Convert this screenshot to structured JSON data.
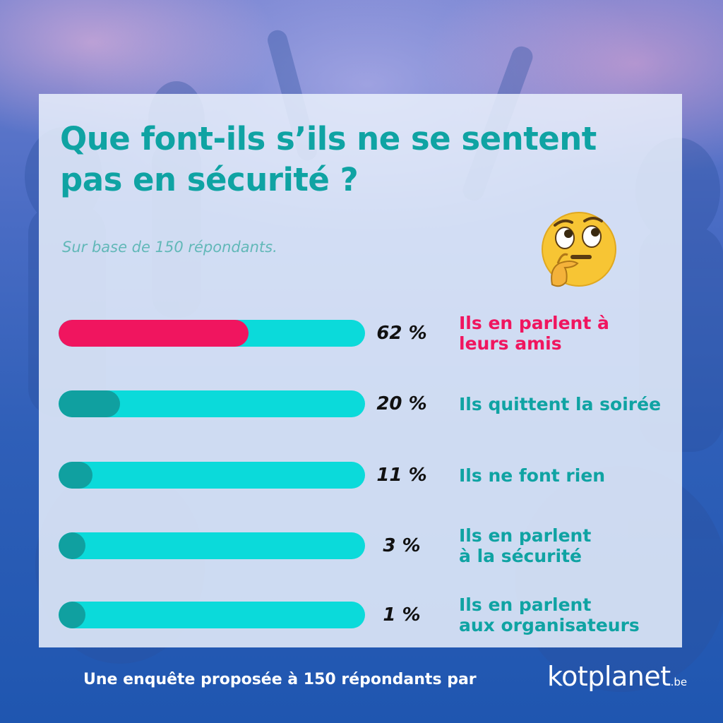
{
  "title": "Que font-ils s’ils ne se sentent pas en sécurité ?",
  "subtitle": "Sur base de 150 répondants.",
  "footer": "Une enquête proposée à 150 répondants par",
  "logo": {
    "name": "kotplanet",
    "tld": ".be"
  },
  "icon": "thinking-face-emoji",
  "colors": {
    "title": "#0fa3a3",
    "track": "#0bdada",
    "fill_highlight": "#f0155f",
    "fill_default": "#10a0a0",
    "label_highlight": "#f0155f",
    "label_default": "#0fa3a3"
  },
  "chart_data": {
    "type": "bar",
    "orientation": "horizontal",
    "unit": "%",
    "xlim": [
      0,
      100
    ],
    "grid": false,
    "categories": [
      "Ils en parlent à\nleurs amis",
      "Ils quittent la soirée",
      "Ils ne font rien",
      "Ils en parlent\nà la sécurité",
      "Ils en parlent\naux organisateurs"
    ],
    "values": [
      62,
      20,
      11,
      3,
      1
    ],
    "value_labels": [
      "62 %",
      "20 %",
      "11 %",
      "3 %",
      "1 %"
    ],
    "highlight_index": 0
  }
}
